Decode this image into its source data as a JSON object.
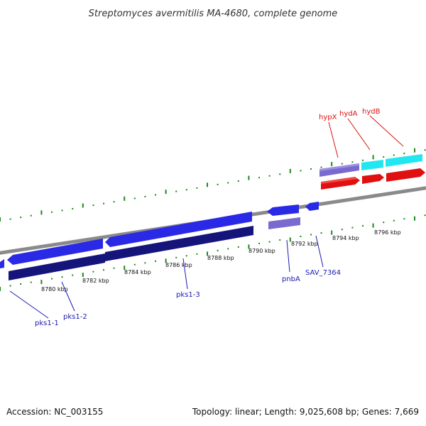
{
  "title": "Streptomyces avermitilis MA-4680, complete genome",
  "footer": {
    "accession": "Accession: NC_003155",
    "summary": "Topology: linear; Length: 9,025,608 bp; Genes: 7,669"
  },
  "colors": {
    "forward_gene": "#2a2ae6",
    "forward_gene_light": "#5a5aff",
    "cds_dark": "#14147a",
    "cds_purple": "#7a6ad0",
    "cyan_gene": "#22e6f0",
    "red_gene": "#e01010",
    "tick": "#1a8a1a",
    "backbone": "#8a8a8a",
    "label_blue": "#1a1ab0",
    "label_red": "#dd1111"
  },
  "scale_labels": [
    "8780 kbp",
    "8782 kbp",
    "8784 kbp",
    "8786 kbp",
    "8788 kbp",
    "8790 kbp",
    "8792 kbp",
    "8794 kbp",
    "8796 kbp"
  ],
  "gene_labels": {
    "pks1_1": "pks1-1",
    "pks1_2": "pks1-2",
    "pks1_3": "pks1-3",
    "pnbA": "pnbA",
    "SAV_7364": "SAV_7364",
    "hypX": "hypX",
    "hydA": "hydA",
    "hydB": "hydB"
  }
}
